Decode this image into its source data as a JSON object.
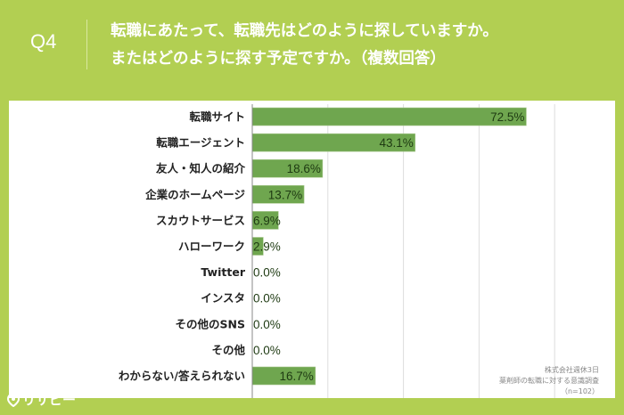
{
  "header": {
    "q_label": "Q4",
    "title_line1": "転職にあたって、転職先はどのように探していますか。",
    "title_line2": "またはどのように探す予定ですか。（複数回答）"
  },
  "source": {
    "line1": "株式会社週休3日",
    "line2": "薬剤師の転職に対する意識調査",
    "line3": "（n=102）"
  },
  "logo": {
    "text": "リサピー",
    "icon": "map-pin-icon"
  },
  "colors": {
    "background": "#b2cf52",
    "bar": "#6fa64f"
  },
  "chart_data": {
    "type": "bar",
    "orientation": "horizontal",
    "categories": [
      "転職サイト",
      "転職エージェント",
      "友人・知人の紹介",
      "企業のホームページ",
      "スカウトサービス",
      "ハローワーク",
      "Twitter",
      "インスタ",
      "その他のSNS",
      "その他",
      "わからない/答えられない"
    ],
    "values": [
      72.5,
      43.1,
      18.6,
      13.7,
      6.9,
      2.9,
      0.0,
      0.0,
      0.0,
      0.0,
      16.7
    ],
    "value_labels": [
      "72.5%",
      "43.1%",
      "18.6%",
      "13.7%",
      "6.9%",
      "2.9%",
      "0.0%",
      "0.0%",
      "0.0%",
      "0.0%",
      "16.7%"
    ],
    "xlim": [
      0,
      95
    ],
    "gridlines": [
      20,
      40,
      60,
      80
    ],
    "grid": true
  }
}
